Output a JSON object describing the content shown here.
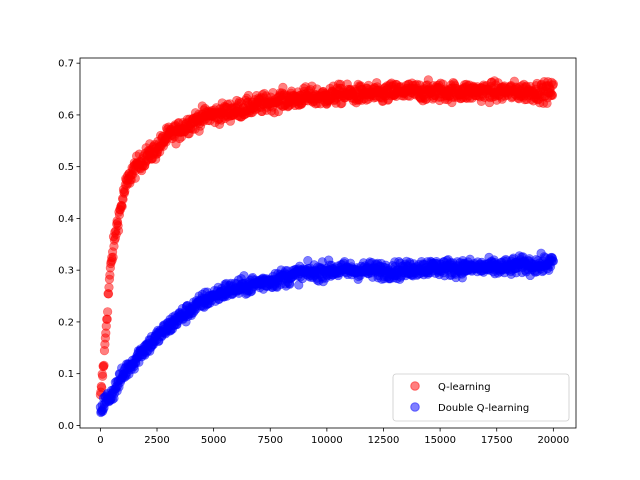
{
  "chart_data": {
    "type": "scatter",
    "title": "",
    "xlabel": "",
    "ylabel": "",
    "xlim": [
      -900,
      21000
    ],
    "ylim": [
      -0.005,
      0.71
    ],
    "xticks": [
      0,
      2500,
      5000,
      7500,
      10000,
      12500,
      15000,
      17500,
      20000
    ],
    "xtick_labels": [
      "0",
      "2500",
      "5000",
      "7500",
      "10000",
      "12500",
      "15000",
      "17500",
      "20000"
    ],
    "yticks": [
      0.0,
      0.1,
      0.2,
      0.3,
      0.4,
      0.5,
      0.6,
      0.7
    ],
    "ytick_labels": [
      "0.0",
      "0.1",
      "0.2",
      "0.3",
      "0.4",
      "0.5",
      "0.6",
      "0.7"
    ],
    "grid": false,
    "legend_placement": "lower-right",
    "series": [
      {
        "name": "Q-learning",
        "color": "#ff0000",
        "opacity": 0.5,
        "points": [
          [
            0,
            0.05
          ],
          [
            50,
            0.07
          ],
          [
            100,
            0.1
          ],
          [
            150,
            0.12
          ],
          [
            200,
            0.15
          ],
          [
            250,
            0.19
          ],
          [
            300,
            0.22
          ],
          [
            350,
            0.25
          ],
          [
            400,
            0.28
          ],
          [
            450,
            0.3
          ],
          [
            500,
            0.32
          ],
          [
            600,
            0.35
          ],
          [
            700,
            0.38
          ],
          [
            800,
            0.4
          ],
          [
            900,
            0.42
          ],
          [
            1000,
            0.44
          ],
          [
            1100,
            0.46
          ],
          [
            1200,
            0.47
          ],
          [
            1300,
            0.48
          ],
          [
            1400,
            0.49
          ],
          [
            1600,
            0.5
          ],
          [
            1800,
            0.51
          ],
          [
            2000,
            0.52
          ],
          [
            2200,
            0.525
          ],
          [
            2400,
            0.53
          ],
          [
            2600,
            0.54
          ],
          [
            2800,
            0.55
          ],
          [
            3000,
            0.56
          ],
          [
            3250,
            0.565
          ],
          [
            3500,
            0.57
          ],
          [
            3750,
            0.58
          ],
          [
            4000,
            0.585
          ],
          [
            4250,
            0.59
          ],
          [
            4500,
            0.595
          ],
          [
            4750,
            0.6
          ],
          [
            5000,
            0.6
          ],
          [
            5500,
            0.605
          ],
          [
            6000,
            0.61
          ],
          [
            6500,
            0.615
          ],
          [
            7000,
            0.62
          ],
          [
            7500,
            0.625
          ],
          [
            8000,
            0.63
          ],
          [
            8500,
            0.63
          ],
          [
            9000,
            0.635
          ],
          [
            9500,
            0.635
          ],
          [
            10000,
            0.635
          ],
          [
            10500,
            0.64
          ],
          [
            11000,
            0.64
          ],
          [
            11500,
            0.64
          ],
          [
            12000,
            0.64
          ],
          [
            12500,
            0.64
          ],
          [
            13000,
            0.645
          ],
          [
            13500,
            0.645
          ],
          [
            14000,
            0.645
          ],
          [
            14500,
            0.645
          ],
          [
            15000,
            0.645
          ],
          [
            15500,
            0.645
          ],
          [
            16000,
            0.645
          ],
          [
            16500,
            0.645
          ],
          [
            17000,
            0.645
          ],
          [
            17500,
            0.645
          ],
          [
            18000,
            0.645
          ],
          [
            18500,
            0.645
          ],
          [
            19000,
            0.645
          ],
          [
            19500,
            0.645
          ],
          [
            20000,
            0.645
          ]
        ]
      },
      {
        "name": "Double Q-learning",
        "color": "#0000ff",
        "opacity": 0.5,
        "points": [
          [
            0,
            0.03
          ],
          [
            100,
            0.04
          ],
          [
            200,
            0.045
          ],
          [
            300,
            0.05
          ],
          [
            400,
            0.055
          ],
          [
            500,
            0.06
          ],
          [
            700,
            0.075
          ],
          [
            900,
            0.09
          ],
          [
            1100,
            0.105
          ],
          [
            1300,
            0.115
          ],
          [
            1500,
            0.125
          ],
          [
            1750,
            0.14
          ],
          [
            2000,
            0.15
          ],
          [
            2250,
            0.16
          ],
          [
            2500,
            0.17
          ],
          [
            2750,
            0.18
          ],
          [
            3000,
            0.19
          ],
          [
            3250,
            0.2
          ],
          [
            3500,
            0.21
          ],
          [
            3750,
            0.215
          ],
          [
            4000,
            0.225
          ],
          [
            4250,
            0.23
          ],
          [
            4500,
            0.24
          ],
          [
            4750,
            0.245
          ],
          [
            5000,
            0.25
          ],
          [
            5500,
            0.26
          ],
          [
            6000,
            0.265
          ],
          [
            6500,
            0.27
          ],
          [
            7000,
            0.275
          ],
          [
            7500,
            0.28
          ],
          [
            8000,
            0.285
          ],
          [
            8500,
            0.29
          ],
          [
            9000,
            0.295
          ],
          [
            9500,
            0.295
          ],
          [
            10000,
            0.3
          ],
          [
            10500,
            0.3
          ],
          [
            11000,
            0.3
          ],
          [
            11500,
            0.3
          ],
          [
            12000,
            0.3
          ],
          [
            12500,
            0.3
          ],
          [
            13000,
            0.3
          ],
          [
            13500,
            0.3
          ],
          [
            14000,
            0.305
          ],
          [
            14500,
            0.305
          ],
          [
            15000,
            0.305
          ],
          [
            15500,
            0.305
          ],
          [
            16000,
            0.305
          ],
          [
            16500,
            0.305
          ],
          [
            17000,
            0.305
          ],
          [
            17500,
            0.305
          ],
          [
            18000,
            0.305
          ],
          [
            18500,
            0.31
          ],
          [
            19000,
            0.31
          ],
          [
            19500,
            0.31
          ],
          [
            20000,
            0.315
          ]
        ]
      }
    ]
  }
}
